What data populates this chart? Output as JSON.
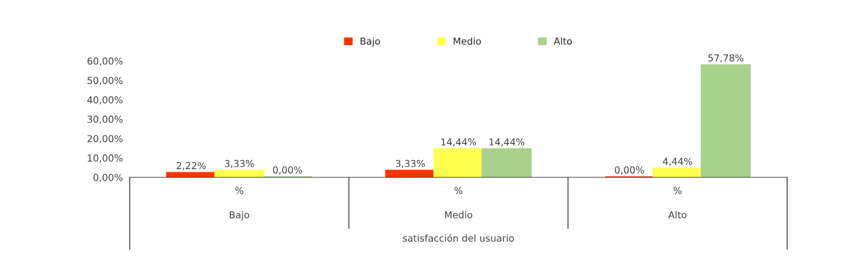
{
  "chart_data": {
    "type": "bar",
    "categories": [
      "Bajo",
      "Medio",
      "Alto"
    ],
    "xlabel": "satisfacción del usuario",
    "annotations": [
      "%",
      "%",
      "%"
    ],
    "series": [
      {
        "name": "Bajo",
        "color": "#ff3300",
        "values": [
          2.22,
          3.33,
          0.0
        ],
        "value_labels": [
          "2,22%",
          "3,33%",
          "0,00%"
        ]
      },
      {
        "name": "Medio",
        "color": "#ffff4d",
        "values": [
          3.33,
          14.44,
          4.44
        ],
        "value_labels": [
          "3,33%",
          "14,44%",
          "4,44%"
        ]
      },
      {
        "name": "Alto",
        "color": "#a9d18e",
        "values": [
          0.0,
          14.44,
          57.78
        ],
        "value_labels": [
          "0,00%",
          "14,44%",
          "57,78%"
        ]
      }
    ],
    "ylim": [
      0,
      60
    ],
    "yticks": [
      {
        "value": 0,
        "label": "0,00%"
      },
      {
        "value": 10,
        "label": "10,00%"
      },
      {
        "value": 20,
        "label": "20,00%"
      },
      {
        "value": 30,
        "label": "30,00%"
      },
      {
        "value": 40,
        "label": "40,00%"
      },
      {
        "value": 50,
        "label": "50,00%"
      },
      {
        "value": 60,
        "label": "60,00%"
      }
    ],
    "grid": false,
    "legend": "top"
  }
}
